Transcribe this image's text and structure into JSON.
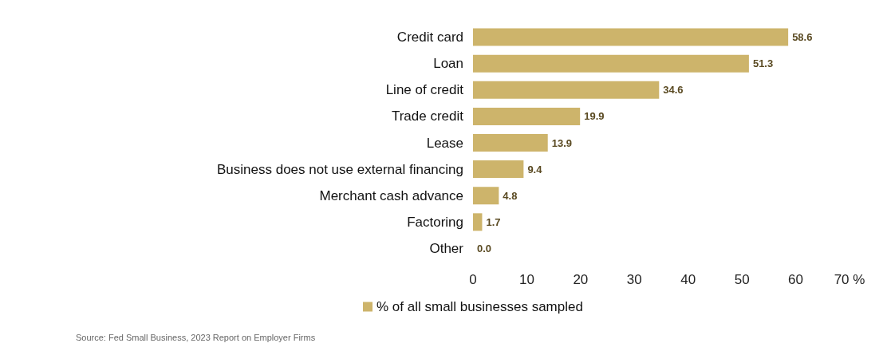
{
  "chart_data": {
    "type": "bar",
    "orientation": "horizontal",
    "categories": [
      "Credit card",
      "Loan",
      "Line of credit",
      "Trade credit",
      "Lease",
      "Business does not use external financing",
      "Merchant cash advance",
      "Factoring",
      "Other"
    ],
    "series": [
      {
        "name": "% of all small businesses sampled",
        "color": "#cdb46b",
        "values": [
          58.6,
          51.3,
          34.6,
          19.9,
          13.9,
          9.4,
          4.8,
          1.7,
          0.0
        ]
      }
    ],
    "xlim": [
      0,
      70
    ],
    "xticks": [
      0,
      10,
      20,
      30,
      40,
      50,
      60,
      {
        "value": 70,
        "label": "70 %"
      }
    ],
    "value_labels": [
      "58.6",
      "51.3",
      "34.6",
      "19.9",
      "13.9",
      "9.4",
      "4.8",
      "1.7",
      "0.0"
    ],
    "grid": false,
    "legend": "bottom",
    "annotations": [
      "Source: Fed Small Business, 2023 Report on Employer Firms"
    ]
  }
}
